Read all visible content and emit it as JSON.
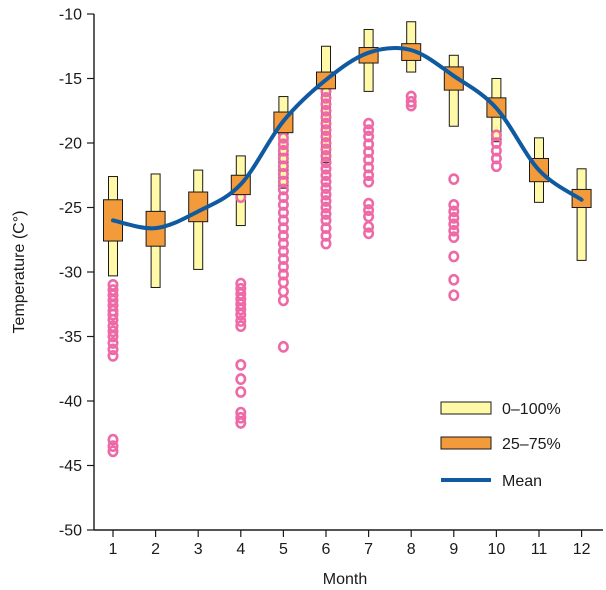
{
  "chart_data": {
    "type": "box",
    "title": "",
    "xlabel": "Month",
    "ylabel": "Temperature (C°)",
    "ylim": [
      -50,
      -10
    ],
    "yticks": [
      -10,
      -15,
      -20,
      -25,
      -30,
      -35,
      -40,
      -45,
      -50
    ],
    "categories": [
      "1",
      "2",
      "3",
      "4",
      "5",
      "6",
      "7",
      "8",
      "9",
      "10",
      "11",
      "12"
    ],
    "grid": false,
    "legend_position": "bottom-right",
    "legend": {
      "range_label": "0–100%",
      "iqr_label": "25–75%",
      "mean_label": "Mean"
    },
    "colors": {
      "range": "#fff9a8",
      "iqr": "#f39a3a",
      "mean": "#0f5aa0",
      "outlier": "#ee6aa7",
      "outline": "#1a1a1a"
    },
    "series": [
      {
        "range": [
          [
            -30.3,
            -22.6
          ],
          [
            -31.2,
            -22.4
          ],
          [
            -29.8,
            -22.1
          ],
          [
            -26.4,
            -21.0
          ],
          [
            -23.5,
            -16.4
          ],
          [
            -21.5,
            -12.5
          ],
          [
            -16.0,
            -11.2
          ],
          [
            -14.5,
            -10.6
          ],
          [
            -18.7,
            -13.2
          ],
          [
            -19.9,
            -15.0
          ],
          [
            -24.6,
            -19.6
          ],
          [
            -29.1,
            -22.0
          ]
        ],
        "iqr": [
          [
            -27.6,
            -24.4
          ],
          [
            -28.0,
            -25.3
          ],
          [
            -26.1,
            -23.8
          ],
          [
            -24.0,
            -22.5
          ],
          [
            -19.2,
            -17.6
          ],
          [
            -15.8,
            -14.5
          ],
          [
            -13.8,
            -12.6
          ],
          [
            -13.6,
            -12.3
          ],
          [
            -15.9,
            -14.1
          ],
          [
            -18.0,
            -16.5
          ],
          [
            -23.0,
            -21.2
          ],
          [
            -25.0,
            -23.6
          ]
        ],
        "mean": [
          -26.0,
          -26.6,
          -25.3,
          -23.2,
          -18.3,
          -15.1,
          -13.0,
          -12.8,
          -14.8,
          -17.3,
          -22.1,
          -24.4
        ]
      }
    ],
    "outliers": [
      {
        "month": 1,
        "values": [
          -31.0,
          -31.4,
          -31.8,
          -32.2,
          -32.6,
          -33.0,
          -33.3,
          -33.7,
          -34.2,
          -34.6,
          -35.0,
          -35.5,
          -36.0,
          -36.5,
          -43.0,
          -43.5,
          -43.9
        ]
      },
      {
        "month": 4,
        "values": [
          -23.6,
          -24.2,
          -30.9,
          -31.3,
          -31.7,
          -32.1,
          -32.5,
          -32.9,
          -33.3,
          -33.8,
          -34.2,
          -37.2,
          -38.3,
          -39.3,
          -40.9,
          -41.3,
          -41.7
        ]
      },
      {
        "month": 5,
        "values": [
          -19.6,
          -20.1,
          -20.6,
          -21.2,
          -21.8,
          -22.4,
          -23.0,
          -23.6,
          -24.2,
          -24.8,
          -25.4,
          -26.0,
          -26.6,
          -27.2,
          -27.8,
          -28.4,
          -29.0,
          -29.6,
          -30.2,
          -30.8,
          -31.5,
          -32.2,
          -35.8
        ]
      },
      {
        "month": 6,
        "values": [
          -16.0,
          -16.5,
          -17.0,
          -17.5,
          -18.0,
          -18.5,
          -19.0,
          -19.5,
          -20.0,
          -20.5,
          -21.0,
          -21.5,
          -22.0,
          -22.5,
          -23.0,
          -23.5,
          -24.0,
          -24.5,
          -25.0,
          -25.5,
          -26.0,
          -26.6,
          -27.2,
          -27.8
        ]
      },
      {
        "month": 7,
        "values": [
          -18.5,
          -19.0,
          -19.5,
          -20.1,
          -20.7,
          -21.3,
          -21.9,
          -22.5,
          -23.0,
          -24.7,
          -25.2,
          -25.7,
          -26.5,
          -27.0
        ]
      },
      {
        "month": 8,
        "values": [
          -16.4,
          -16.8,
          -17.1
        ]
      },
      {
        "month": 9,
        "values": [
          -22.8,
          -24.8,
          -25.3,
          -25.8,
          -26.3,
          -26.8,
          -27.3,
          -28.8,
          -30.6,
          -31.8
        ]
      },
      {
        "month": 10,
        "values": [
          -19.4,
          -20.0,
          -20.6,
          -21.2,
          -21.8
        ]
      }
    ]
  }
}
